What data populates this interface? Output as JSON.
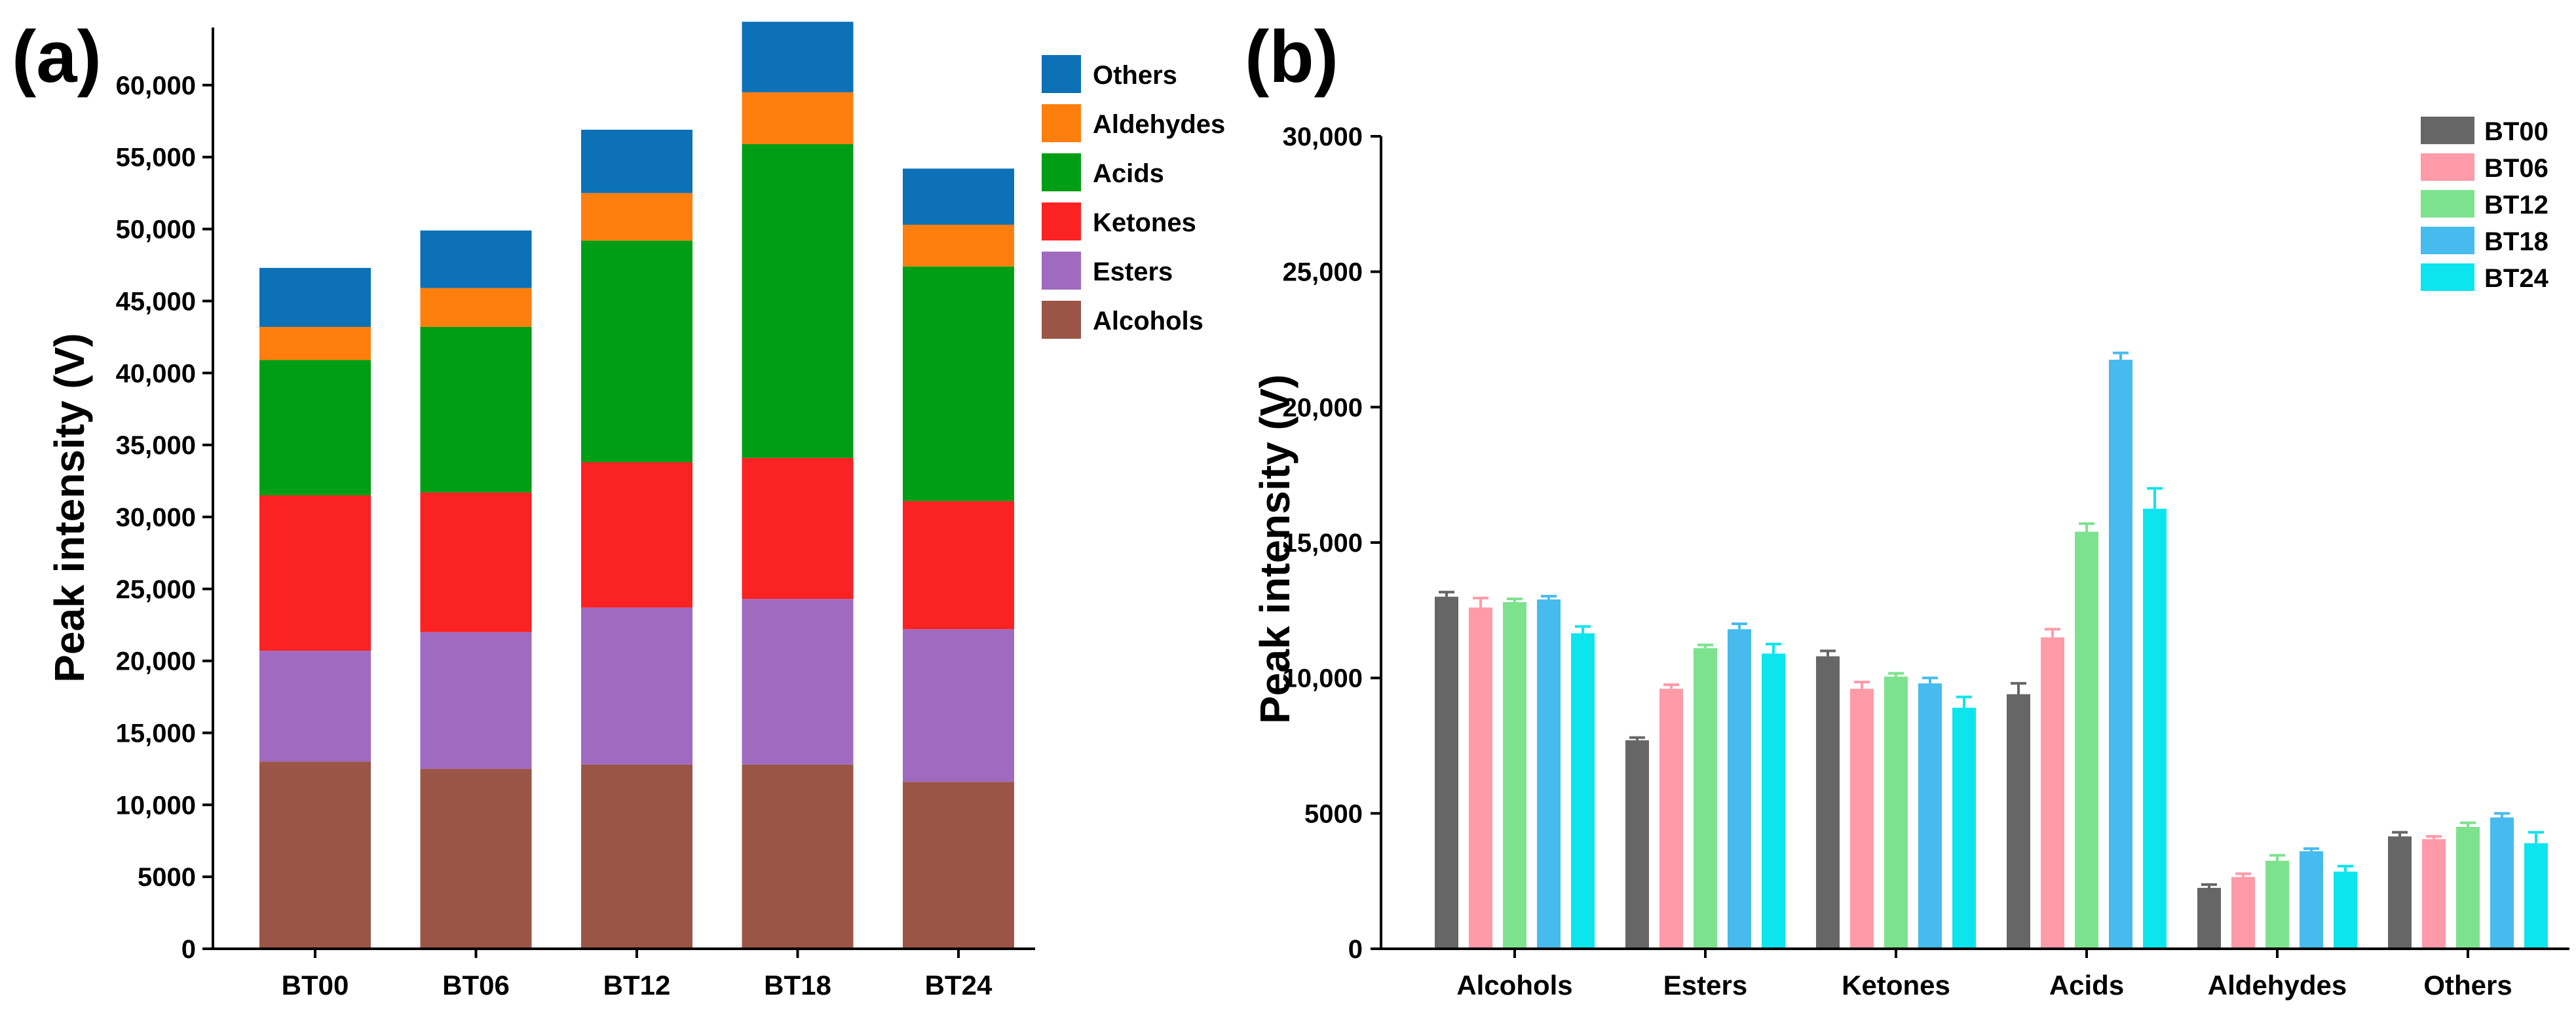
{
  "chart_data": [
    {
      "panel": "(a)",
      "type": "bar",
      "stacked": true,
      "title": "",
      "xlabel": "",
      "ylabel": "Peak intensity (V)",
      "ylim": [
        0,
        64000
      ],
      "yticks": [
        0,
        5000,
        10000,
        15000,
        20000,
        25000,
        30000,
        35000,
        40000,
        45000,
        50000,
        55000,
        60000
      ],
      "ytick_labels": [
        "0",
        "5000",
        "10,000",
        "15,000",
        "20,000",
        "25,000",
        "30,000",
        "35,000",
        "40,000",
        "45,000",
        "50,000",
        "55,000",
        "60,000"
      ],
      "categories": [
        "BT00",
        "BT06",
        "BT12",
        "BT18",
        "BT24"
      ],
      "legend_position": "top-right",
      "series": [
        {
          "name": "Alcohols",
          "color": "#9b5546",
          "values": [
            13000,
            12500,
            12800,
            12800,
            11600
          ]
        },
        {
          "name": "Esters",
          "color": "#a06ac0",
          "values": [
            7700,
            9500,
            10900,
            11500,
            10600
          ]
        },
        {
          "name": "Ketones",
          "color": "#fa2222",
          "values": [
            10800,
            9700,
            10100,
            9800,
            8900
          ]
        },
        {
          "name": "Acids",
          "color": "#009e14",
          "values": [
            9400,
            11500,
            15400,
            21800,
            16300
          ]
        },
        {
          "name": "Aldehydes",
          "color": "#ff7f0e",
          "values": [
            2300,
            2700,
            3300,
            3600,
            2900
          ]
        },
        {
          "name": "Others",
          "color": "#0c71b7",
          "values": [
            4100,
            4000,
            4400,
            4900,
            3900
          ]
        }
      ]
    },
    {
      "panel": "(b)",
      "type": "bar",
      "stacked": false,
      "error_bars": true,
      "title": "",
      "xlabel": "",
      "ylabel": "Peak intensity (V)",
      "ylim": [
        0,
        30000
      ],
      "yticks": [
        0,
        5000,
        10000,
        15000,
        20000,
        25000,
        30000
      ],
      "ytick_labels": [
        "0",
        "5000",
        "10,000",
        "15,000",
        "20,000",
        "25,000",
        "30,000"
      ],
      "categories": [
        "Alcohols",
        "Esters",
        "Ketones",
        "Acids",
        "Aldehydes",
        "Others"
      ],
      "legend_position": "top-right",
      "series": [
        {
          "name": "BT00",
          "color": "#666666",
          "values": [
            13000,
            7700,
            10800,
            9400,
            2250,
            4150
          ],
          "errors": [
            170,
            100,
            200,
            400,
            120,
            150
          ]
        },
        {
          "name": "BT06",
          "color": "#ff9aa8",
          "values": [
            12600,
            9600,
            9600,
            11500,
            2650,
            4050
          ],
          "errors": [
            350,
            150,
            250,
            300,
            120,
            100
          ]
        },
        {
          "name": "BT12",
          "color": "#7ce28e",
          "values": [
            12800,
            11100,
            10050,
            15400,
            3250,
            4500
          ],
          "errors": [
            120,
            120,
            120,
            300,
            200,
            150
          ]
        },
        {
          "name": "BT18",
          "color": "#47bbed",
          "values": [
            12900,
            11800,
            9800,
            21750,
            3600,
            4850
          ],
          "errors": [
            120,
            200,
            200,
            250,
            100,
            150
          ]
        },
        {
          "name": "BT24",
          "color": "#0de5ee",
          "values": [
            11650,
            10900,
            8900,
            16250,
            2850,
            3900
          ],
          "errors": [
            250,
            350,
            400,
            750,
            200,
            400
          ]
        }
      ]
    }
  ]
}
